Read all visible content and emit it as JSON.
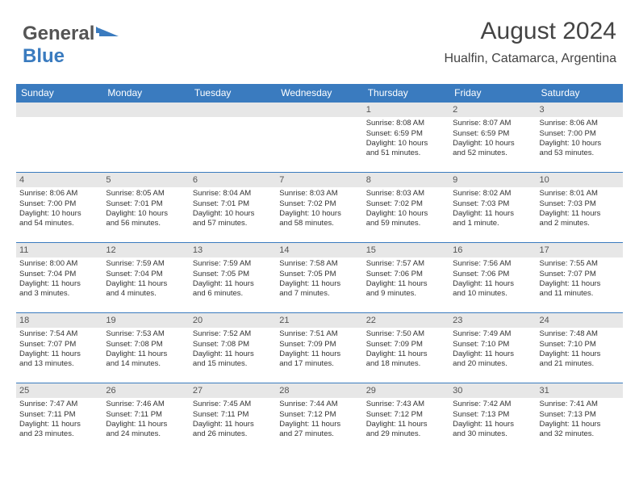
{
  "logo": {
    "text_part1": "General",
    "text_part2": "Blue"
  },
  "header": {
    "month_year": "August 2024",
    "location": "Hualfin, Catamarca, Argentina"
  },
  "colors": {
    "header_bg": "#3a7bbf",
    "header_text": "#ffffff",
    "daynum_bg": "#e7e7e7",
    "daynum_text": "#555555",
    "body_text": "#333333",
    "divider": "#3a7bbf"
  },
  "days_of_week": [
    "Sunday",
    "Monday",
    "Tuesday",
    "Wednesday",
    "Thursday",
    "Friday",
    "Saturday"
  ],
  "weeks": [
    [
      {
        "num": "",
        "lines": []
      },
      {
        "num": "",
        "lines": []
      },
      {
        "num": "",
        "lines": []
      },
      {
        "num": "",
        "lines": []
      },
      {
        "num": "1",
        "lines": [
          "Sunrise: 8:08 AM",
          "Sunset: 6:59 PM",
          "Daylight: 10 hours",
          "and 51 minutes."
        ]
      },
      {
        "num": "2",
        "lines": [
          "Sunrise: 8:07 AM",
          "Sunset: 6:59 PM",
          "Daylight: 10 hours",
          "and 52 minutes."
        ]
      },
      {
        "num": "3",
        "lines": [
          "Sunrise: 8:06 AM",
          "Sunset: 7:00 PM",
          "Daylight: 10 hours",
          "and 53 minutes."
        ]
      }
    ],
    [
      {
        "num": "4",
        "lines": [
          "Sunrise: 8:06 AM",
          "Sunset: 7:00 PM",
          "Daylight: 10 hours",
          "and 54 minutes."
        ]
      },
      {
        "num": "5",
        "lines": [
          "Sunrise: 8:05 AM",
          "Sunset: 7:01 PM",
          "Daylight: 10 hours",
          "and 56 minutes."
        ]
      },
      {
        "num": "6",
        "lines": [
          "Sunrise: 8:04 AM",
          "Sunset: 7:01 PM",
          "Daylight: 10 hours",
          "and 57 minutes."
        ]
      },
      {
        "num": "7",
        "lines": [
          "Sunrise: 8:03 AM",
          "Sunset: 7:02 PM",
          "Daylight: 10 hours",
          "and 58 minutes."
        ]
      },
      {
        "num": "8",
        "lines": [
          "Sunrise: 8:03 AM",
          "Sunset: 7:02 PM",
          "Daylight: 10 hours",
          "and 59 minutes."
        ]
      },
      {
        "num": "9",
        "lines": [
          "Sunrise: 8:02 AM",
          "Sunset: 7:03 PM",
          "Daylight: 11 hours",
          "and 1 minute."
        ]
      },
      {
        "num": "10",
        "lines": [
          "Sunrise: 8:01 AM",
          "Sunset: 7:03 PM",
          "Daylight: 11 hours",
          "and 2 minutes."
        ]
      }
    ],
    [
      {
        "num": "11",
        "lines": [
          "Sunrise: 8:00 AM",
          "Sunset: 7:04 PM",
          "Daylight: 11 hours",
          "and 3 minutes."
        ]
      },
      {
        "num": "12",
        "lines": [
          "Sunrise: 7:59 AM",
          "Sunset: 7:04 PM",
          "Daylight: 11 hours",
          "and 4 minutes."
        ]
      },
      {
        "num": "13",
        "lines": [
          "Sunrise: 7:59 AM",
          "Sunset: 7:05 PM",
          "Daylight: 11 hours",
          "and 6 minutes."
        ]
      },
      {
        "num": "14",
        "lines": [
          "Sunrise: 7:58 AM",
          "Sunset: 7:05 PM",
          "Daylight: 11 hours",
          "and 7 minutes."
        ]
      },
      {
        "num": "15",
        "lines": [
          "Sunrise: 7:57 AM",
          "Sunset: 7:06 PM",
          "Daylight: 11 hours",
          "and 9 minutes."
        ]
      },
      {
        "num": "16",
        "lines": [
          "Sunrise: 7:56 AM",
          "Sunset: 7:06 PM",
          "Daylight: 11 hours",
          "and 10 minutes."
        ]
      },
      {
        "num": "17",
        "lines": [
          "Sunrise: 7:55 AM",
          "Sunset: 7:07 PM",
          "Daylight: 11 hours",
          "and 11 minutes."
        ]
      }
    ],
    [
      {
        "num": "18",
        "lines": [
          "Sunrise: 7:54 AM",
          "Sunset: 7:07 PM",
          "Daylight: 11 hours",
          "and 13 minutes."
        ]
      },
      {
        "num": "19",
        "lines": [
          "Sunrise: 7:53 AM",
          "Sunset: 7:08 PM",
          "Daylight: 11 hours",
          "and 14 minutes."
        ]
      },
      {
        "num": "20",
        "lines": [
          "Sunrise: 7:52 AM",
          "Sunset: 7:08 PM",
          "Daylight: 11 hours",
          "and 15 minutes."
        ]
      },
      {
        "num": "21",
        "lines": [
          "Sunrise: 7:51 AM",
          "Sunset: 7:09 PM",
          "Daylight: 11 hours",
          "and 17 minutes."
        ]
      },
      {
        "num": "22",
        "lines": [
          "Sunrise: 7:50 AM",
          "Sunset: 7:09 PM",
          "Daylight: 11 hours",
          "and 18 minutes."
        ]
      },
      {
        "num": "23",
        "lines": [
          "Sunrise: 7:49 AM",
          "Sunset: 7:10 PM",
          "Daylight: 11 hours",
          "and 20 minutes."
        ]
      },
      {
        "num": "24",
        "lines": [
          "Sunrise: 7:48 AM",
          "Sunset: 7:10 PM",
          "Daylight: 11 hours",
          "and 21 minutes."
        ]
      }
    ],
    [
      {
        "num": "25",
        "lines": [
          "Sunrise: 7:47 AM",
          "Sunset: 7:11 PM",
          "Daylight: 11 hours",
          "and 23 minutes."
        ]
      },
      {
        "num": "26",
        "lines": [
          "Sunrise: 7:46 AM",
          "Sunset: 7:11 PM",
          "Daylight: 11 hours",
          "and 24 minutes."
        ]
      },
      {
        "num": "27",
        "lines": [
          "Sunrise: 7:45 AM",
          "Sunset: 7:11 PM",
          "Daylight: 11 hours",
          "and 26 minutes."
        ]
      },
      {
        "num": "28",
        "lines": [
          "Sunrise: 7:44 AM",
          "Sunset: 7:12 PM",
          "Daylight: 11 hours",
          "and 27 minutes."
        ]
      },
      {
        "num": "29",
        "lines": [
          "Sunrise: 7:43 AM",
          "Sunset: 7:12 PM",
          "Daylight: 11 hours",
          "and 29 minutes."
        ]
      },
      {
        "num": "30",
        "lines": [
          "Sunrise: 7:42 AM",
          "Sunset: 7:13 PM",
          "Daylight: 11 hours",
          "and 30 minutes."
        ]
      },
      {
        "num": "31",
        "lines": [
          "Sunrise: 7:41 AM",
          "Sunset: 7:13 PM",
          "Daylight: 11 hours",
          "and 32 minutes."
        ]
      }
    ]
  ]
}
